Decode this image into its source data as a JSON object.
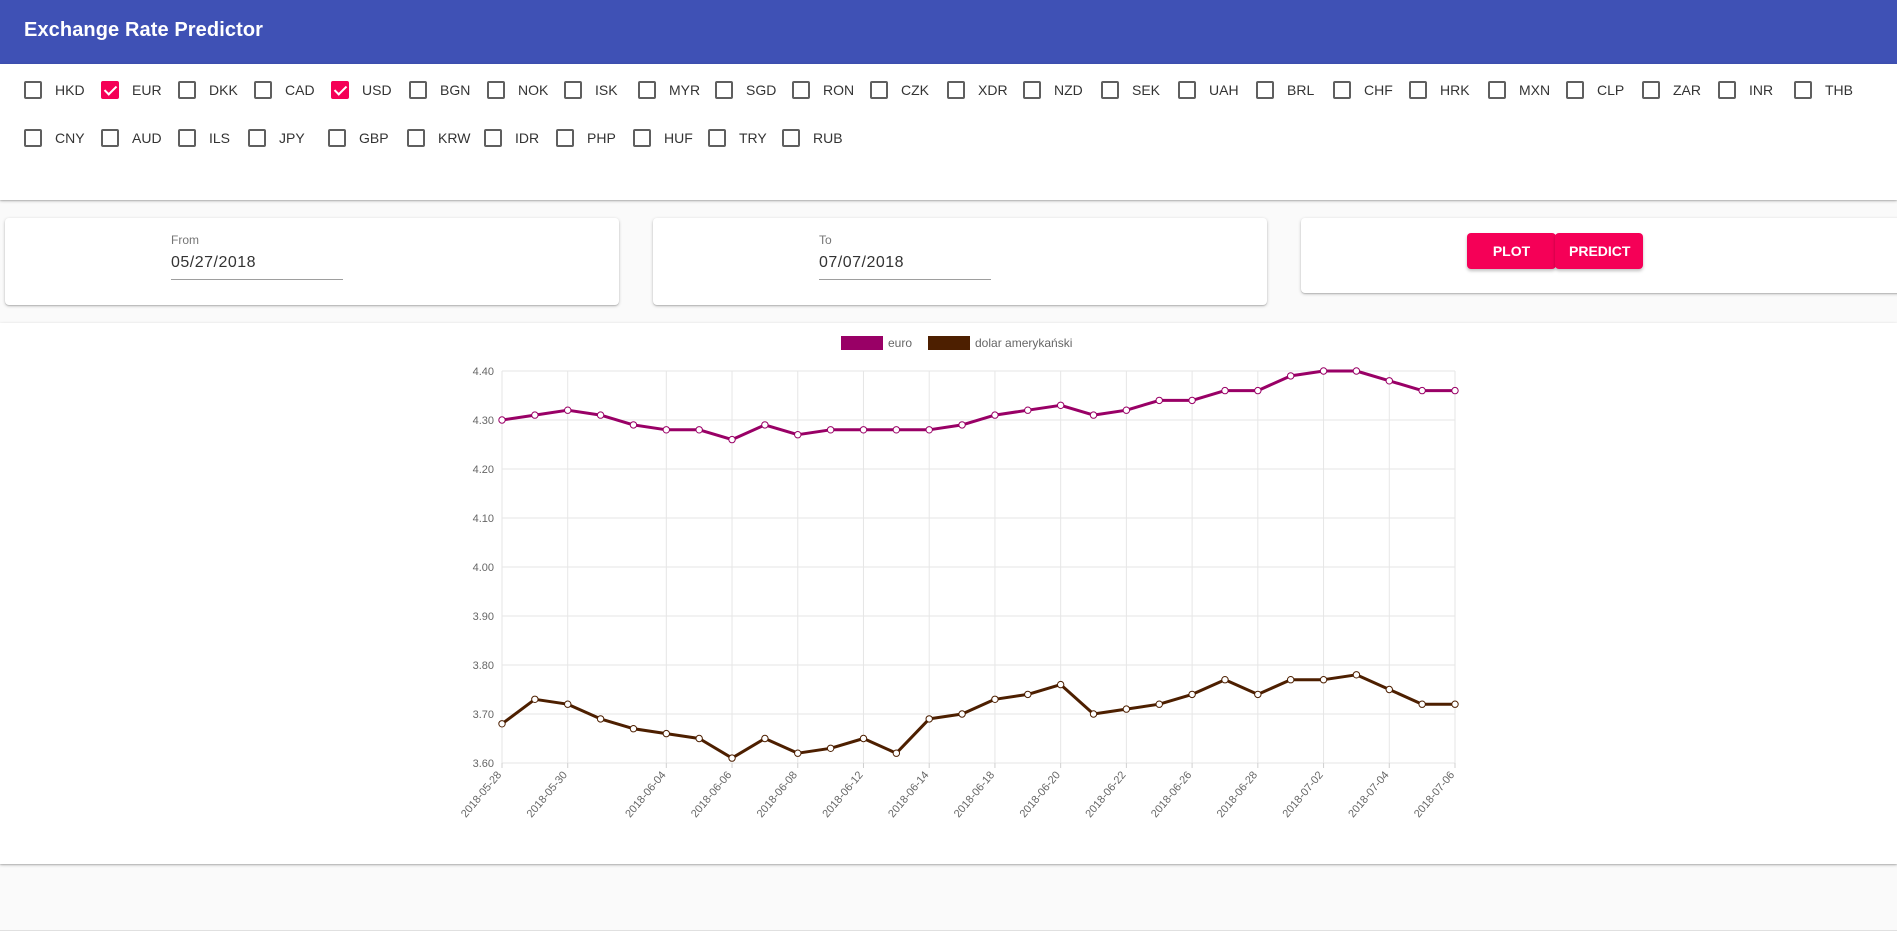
{
  "app": {
    "title": "Exchange Rate Predictor"
  },
  "currencies": [
    {
      "code": "HKD",
      "checked": false
    },
    {
      "code": "EUR",
      "checked": true
    },
    {
      "code": "DKK",
      "checked": false
    },
    {
      "code": "CAD",
      "checked": false
    },
    {
      "code": "USD",
      "checked": true
    },
    {
      "code": "BGN",
      "checked": false
    },
    {
      "code": "NOK",
      "checked": false
    },
    {
      "code": "ISK",
      "checked": false
    },
    {
      "code": "MYR",
      "checked": false
    },
    {
      "code": "SGD",
      "checked": false
    },
    {
      "code": "RON",
      "checked": false
    },
    {
      "code": "CZK",
      "checked": false
    },
    {
      "code": "XDR",
      "checked": false
    },
    {
      "code": "NZD",
      "checked": false
    },
    {
      "code": "SEK",
      "checked": false
    },
    {
      "code": "UAH",
      "checked": false
    },
    {
      "code": "BRL",
      "checked": false
    },
    {
      "code": "CHF",
      "checked": false
    },
    {
      "code": "HRK",
      "checked": false
    },
    {
      "code": "MXN",
      "checked": false
    },
    {
      "code": "CLP",
      "checked": false
    },
    {
      "code": "ZAR",
      "checked": false
    },
    {
      "code": "INR",
      "checked": false
    },
    {
      "code": "THB",
      "checked": false
    },
    {
      "code": "CNY",
      "checked": false
    },
    {
      "code": "AUD",
      "checked": false
    },
    {
      "code": "ILS",
      "checked": false
    },
    {
      "code": "JPY",
      "checked": false
    },
    {
      "code": "GBP",
      "checked": false
    },
    {
      "code": "KRW",
      "checked": false
    },
    {
      "code": "IDR",
      "checked": false
    },
    {
      "code": "PHP",
      "checked": false
    },
    {
      "code": "HUF",
      "checked": false
    },
    {
      "code": "TRY",
      "checked": false
    },
    {
      "code": "RUB",
      "checked": false
    }
  ],
  "date_range": {
    "from_label": "From",
    "from_value": "05/27/2018",
    "to_label": "To",
    "to_value": "07/07/2018"
  },
  "actions": {
    "plot_label": "Plot",
    "predict_label": "Predict"
  },
  "colors": {
    "appbar": "#3f51b5",
    "accent": "#f50057"
  },
  "chart_data": {
    "type": "line",
    "title": "",
    "xlabel": "",
    "ylabel": "",
    "ylim": [
      3.6,
      4.4
    ],
    "yticks": [
      "4.40",
      "4.30",
      "4.20",
      "4.10",
      "4.00",
      "3.90",
      "3.80",
      "3.70",
      "3.60"
    ],
    "x": [
      "2018-05-28",
      "2018-05-29",
      "2018-05-30",
      "2018-05-31",
      "2018-06-01",
      "2018-06-04",
      "2018-06-05",
      "2018-06-06",
      "2018-06-07",
      "2018-06-08",
      "2018-06-11",
      "2018-06-12",
      "2018-06-13",
      "2018-06-14",
      "2018-06-15",
      "2018-06-18",
      "2018-06-19",
      "2018-06-20",
      "2018-06-21",
      "2018-06-22",
      "2018-06-25",
      "2018-06-26",
      "2018-06-27",
      "2018-06-28",
      "2018-06-29",
      "2018-07-02",
      "2018-07-03",
      "2018-07-04",
      "2018-07-05",
      "2018-07-06"
    ],
    "xtick_labels": [
      "2018-05-28",
      "2018-05-30",
      "2018-06-04",
      "2018-06-06",
      "2018-06-08",
      "2018-06-12",
      "2018-06-14",
      "2018-06-18",
      "2018-06-20",
      "2018-06-22",
      "2018-06-26",
      "2018-06-28",
      "2018-07-02",
      "2018-07-04",
      "2018-07-06"
    ],
    "series": [
      {
        "name": "euro",
        "color": "#990066",
        "values": [
          4.3,
          4.31,
          4.32,
          4.31,
          4.29,
          4.28,
          4.28,
          4.26,
          4.29,
          4.27,
          4.28,
          4.28,
          4.28,
          4.28,
          4.29,
          4.31,
          4.32,
          4.33,
          4.31,
          4.32,
          4.34,
          4.34,
          4.36,
          4.36,
          4.39,
          4.4,
          4.4,
          4.38,
          4.36,
          4.36
        ]
      },
      {
        "name": "dolar amerykański",
        "color": "#4d1f00",
        "values": [
          3.68,
          3.73,
          3.72,
          3.69,
          3.67,
          3.66,
          3.65,
          3.61,
          3.65,
          3.62,
          3.63,
          3.65,
          3.62,
          3.69,
          3.7,
          3.73,
          3.74,
          3.76,
          3.7,
          3.71,
          3.72,
          3.74,
          3.77,
          3.74,
          3.77,
          3.77,
          3.78,
          3.75,
          3.72,
          3.72
        ]
      }
    ],
    "legend": "top-center",
    "grid": true
  }
}
